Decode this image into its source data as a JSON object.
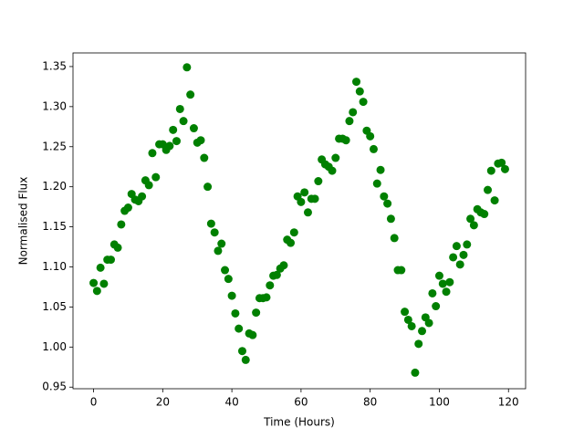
{
  "chart_data": {
    "type": "scatter",
    "x_label": "Time (Hours)",
    "y_label": "Normalised Flux",
    "series": [
      {
        "color": "#008000",
        "x": [
          0,
          1,
          2,
          3,
          4,
          5,
          6,
          7,
          8,
          9,
          10,
          11,
          12,
          13,
          14,
          15,
          16,
          17,
          18,
          19,
          20,
          21,
          22,
          23,
          24,
          25,
          26,
          27,
          28,
          29,
          30,
          31,
          32,
          33,
          34,
          35,
          36,
          37,
          38,
          39,
          40,
          41,
          42,
          43,
          44,
          45,
          46,
          47,
          48,
          49,
          50,
          51,
          52,
          53,
          54,
          55,
          56,
          57,
          58,
          59,
          60,
          61,
          62,
          63,
          64,
          65,
          66,
          67,
          68,
          69,
          70,
          71,
          72,
          73,
          74,
          75,
          76,
          77,
          78,
          79,
          80,
          81,
          82,
          83,
          84,
          85,
          86,
          87,
          88,
          89,
          90,
          91,
          92,
          93,
          94,
          95,
          96,
          97,
          98,
          99,
          100,
          101,
          102,
          103,
          104,
          105,
          106,
          107,
          108,
          109,
          110,
          111,
          112,
          113,
          114,
          115,
          116,
          117,
          118,
          119
        ],
        "values": [
          1.08,
          1.07,
          1.099,
          1.079,
          1.109,
          1.109,
          1.128,
          1.124,
          1.153,
          1.17,
          1.174,
          1.191,
          1.184,
          1.182,
          1.188,
          1.208,
          1.202,
          1.242,
          1.212,
          1.253,
          1.253,
          1.246,
          1.251,
          1.271,
          1.257,
          1.297,
          1.282,
          1.349,
          1.315,
          1.273,
          1.255,
          1.258,
          1.236,
          1.2,
          1.154,
          1.143,
          1.12,
          1.129,
          1.096,
          1.085,
          1.064,
          1.042,
          1.023,
          0.995,
          0.984,
          1.017,
          1.015,
          1.043,
          1.061,
          1.061,
          1.062,
          1.077,
          1.089,
          1.09,
          1.098,
          1.102,
          1.134,
          1.13,
          1.143,
          1.188,
          1.181,
          1.193,
          1.168,
          1.185,
          1.185,
          1.207,
          1.234,
          1.228,
          1.225,
          1.22,
          1.236,
          1.26,
          1.26,
          1.258,
          1.282,
          1.293,
          1.331,
          1.319,
          1.306,
          1.27,
          1.263,
          1.247,
          1.204,
          1.221,
          1.188,
          1.179,
          1.16,
          1.136,
          1.096,
          1.096,
          1.044,
          1.034,
          1.026,
          0.968,
          1.004,
          1.02,
          1.037,
          1.03,
          1.067,
          1.051,
          1.089,
          1.079,
          1.069,
          1.081,
          1.112,
          1.126,
          1.103,
          1.115,
          1.128,
          1.16,
          1.152,
          1.172,
          1.168,
          1.166,
          1.196,
          1.22,
          1.183,
          1.229,
          1.23,
          1.222
        ]
      }
    ],
    "xlim": [
      -5.95,
      124.95
    ],
    "ylim": [
      0.948,
      1.367
    ],
    "xticks": [
      0,
      20,
      40,
      60,
      80,
      100,
      120
    ],
    "yticks": [
      0.95,
      {
        "value": 1.0,
        "label": "1.00"
      },
      1.05,
      {
        "value": 1.1,
        "label": "1.10"
      },
      1.15,
      {
        "value": 1.2,
        "label": "1.20"
      },
      1.25,
      {
        "value": 1.3,
        "label": "1.30"
      },
      1.35
    ]
  }
}
